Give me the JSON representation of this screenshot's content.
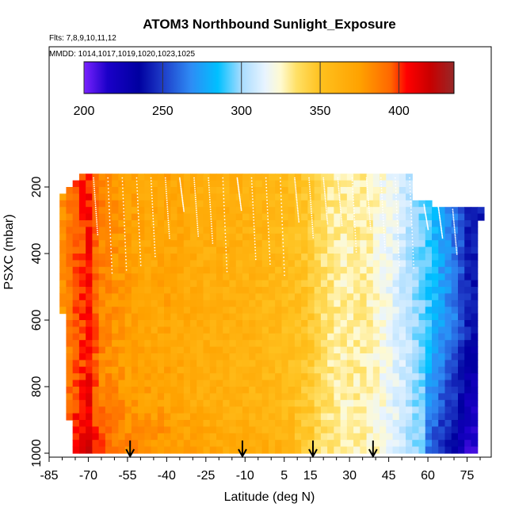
{
  "chart_data": {
    "type": "heatmap",
    "title": "ATOM3 Northbound Sunlight_Exposure",
    "flights_label": "Flts: 7,8,9,10,11,12",
    "dates_label": "MMDD: 1014,1017,1019,1020,1023,1025",
    "xlabel": "Latitude (deg N)",
    "ylabel": "PSXC (mbar)",
    "xlim": [
      -85,
      80
    ],
    "ylim": [
      1010,
      0
    ],
    "x_ticks": [
      -85,
      -70,
      -55,
      -40,
      -25,
      -10,
      5,
      15,
      30,
      45,
      60,
      75
    ],
    "y_ticks": [
      200,
      400,
      600,
      800,
      1000
    ],
    "colorbar": {
      "min": 200,
      "max": 435,
      "ticks": [
        200,
        250,
        300,
        350,
        400
      ],
      "stops": [
        {
          "value": 200,
          "color": "#7a22ff"
        },
        {
          "value": 215,
          "color": "#1a00c8"
        },
        {
          "value": 235,
          "color": "#0000a0"
        },
        {
          "value": 250,
          "color": "#1e3cc8"
        },
        {
          "value": 268,
          "color": "#2e8cf5"
        },
        {
          "value": 285,
          "color": "#00c0ff"
        },
        {
          "value": 300,
          "color": "#a8dcff"
        },
        {
          "value": 315,
          "color": "#e8f4ff"
        },
        {
          "value": 325,
          "color": "#fffad0"
        },
        {
          "value": 335,
          "color": "#ffe066"
        },
        {
          "value": 350,
          "color": "#ffc11e"
        },
        {
          "value": 375,
          "color": "#ffa200"
        },
        {
          "value": 395,
          "color": "#ff6600"
        },
        {
          "value": 405,
          "color": "#ff0000"
        },
        {
          "value": 420,
          "color": "#c80000"
        },
        {
          "value": 435,
          "color": "#962828"
        }
      ]
    },
    "arrows_lat": [
      -54,
      -11,
      16,
      39
    ],
    "profile": [
      {
        "lat": -80,
        "value": 380
      },
      {
        "lat": -75,
        "value": 395
      },
      {
        "lat": -70,
        "value": 405
      },
      {
        "lat": -65,
        "value": 385
      },
      {
        "lat": -60,
        "value": 380
      },
      {
        "lat": -55,
        "value": 375
      },
      {
        "lat": -50,
        "value": 372
      },
      {
        "lat": -45,
        "value": 370
      },
      {
        "lat": -40,
        "value": 372
      },
      {
        "lat": -35,
        "value": 370
      },
      {
        "lat": -30,
        "value": 368
      },
      {
        "lat": -25,
        "value": 366
      },
      {
        "lat": -20,
        "value": 365
      },
      {
        "lat": -15,
        "value": 363
      },
      {
        "lat": -10,
        "value": 362
      },
      {
        "lat": -5,
        "value": 360
      },
      {
        "lat": 0,
        "value": 358
      },
      {
        "lat": 5,
        "value": 355
      },
      {
        "lat": 10,
        "value": 352
      },
      {
        "lat": 15,
        "value": 345
      },
      {
        "lat": 20,
        "value": 335
      },
      {
        "lat": 25,
        "value": 330
      },
      {
        "lat": 30,
        "value": 328
      },
      {
        "lat": 35,
        "value": 330
      },
      {
        "lat": 40,
        "value": 325
      },
      {
        "lat": 45,
        "value": 318
      },
      {
        "lat": 50,
        "value": 310
      },
      {
        "lat": 55,
        "value": 300
      },
      {
        "lat": 60,
        "value": 290
      },
      {
        "lat": 65,
        "value": 275
      },
      {
        "lat": 70,
        "value": 265
      },
      {
        "lat": 75,
        "value": 245
      },
      {
        "lat": 78,
        "value": 240
      }
    ],
    "pressure_top": [
      {
        "lat": -81,
        "value": 220
      },
      {
        "lat": -74,
        "value": 165
      },
      {
        "lat": 53,
        "value": 165
      },
      {
        "lat": 55,
        "value": 240
      },
      {
        "lat": 70,
        "value": 260
      },
      {
        "lat": 78,
        "value": 265
      }
    ],
    "pressure_bottom": [
      {
        "lat": -81,
        "value": 320
      },
      {
        "lat": -80,
        "value": 550
      },
      {
        "lat": -79,
        "value": 700
      },
      {
        "lat": -78,
        "value": 850
      },
      {
        "lat": -76,
        "value": 1005
      },
      {
        "lat": 78,
        "value": 1005
      },
      {
        "lat": 79,
        "value": 600
      },
      {
        "lat": 80,
        "value": 300
      }
    ]
  }
}
